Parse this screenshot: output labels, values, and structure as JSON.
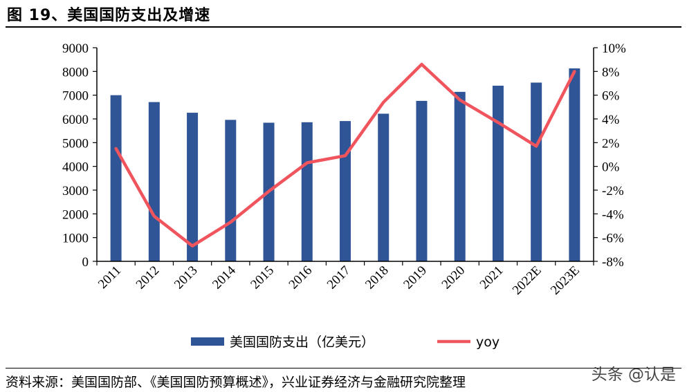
{
  "title": "图 19、美国国防支出及增速",
  "source": "资料来源：美国国防部、《美国国防预算概述》，兴业证券经济与金融研究院整理",
  "watermark": "头条 @认是",
  "colors": {
    "bar": "#2F5597",
    "line": "#F0545C",
    "axis": "#000000"
  },
  "chart_data": {
    "type": "bar",
    "categories": [
      "2011",
      "2012",
      "2013",
      "2014",
      "2015",
      "2016",
      "2017",
      "2018",
      "2019",
      "2020",
      "2021",
      "2022E",
      "2023E"
    ],
    "series": [
      {
        "name": "美国国防支出（亿美元）",
        "type": "bar",
        "axis": "left",
        "values": [
          7000,
          6710,
          6260,
          5960,
          5840,
          5860,
          5910,
          6220,
          6760,
          7140,
          7400,
          7530,
          8130
        ]
      },
      {
        "name": "yoy",
        "type": "line",
        "axis": "right",
        "values": [
          1.5,
          -4.2,
          -6.7,
          -4.7,
          -2.1,
          0.3,
          0.9,
          5.4,
          8.6,
          5.6,
          3.7,
          1.7,
          8.0
        ]
      }
    ],
    "y_left": {
      "min": 0,
      "max": 9000,
      "step": 1000,
      "tick_labels": [
        "0",
        "1000",
        "2000",
        "3000",
        "4000",
        "5000",
        "6000",
        "7000",
        "8000",
        "9000"
      ]
    },
    "y_right": {
      "min": -8,
      "max": 10,
      "step": 2,
      "tick_labels": [
        "-8%",
        "-6%",
        "-4%",
        "-2%",
        "0%",
        "2%",
        "4%",
        "6%",
        "8%",
        "10%"
      ]
    },
    "legend_position": "bottom",
    "grid": false
  }
}
